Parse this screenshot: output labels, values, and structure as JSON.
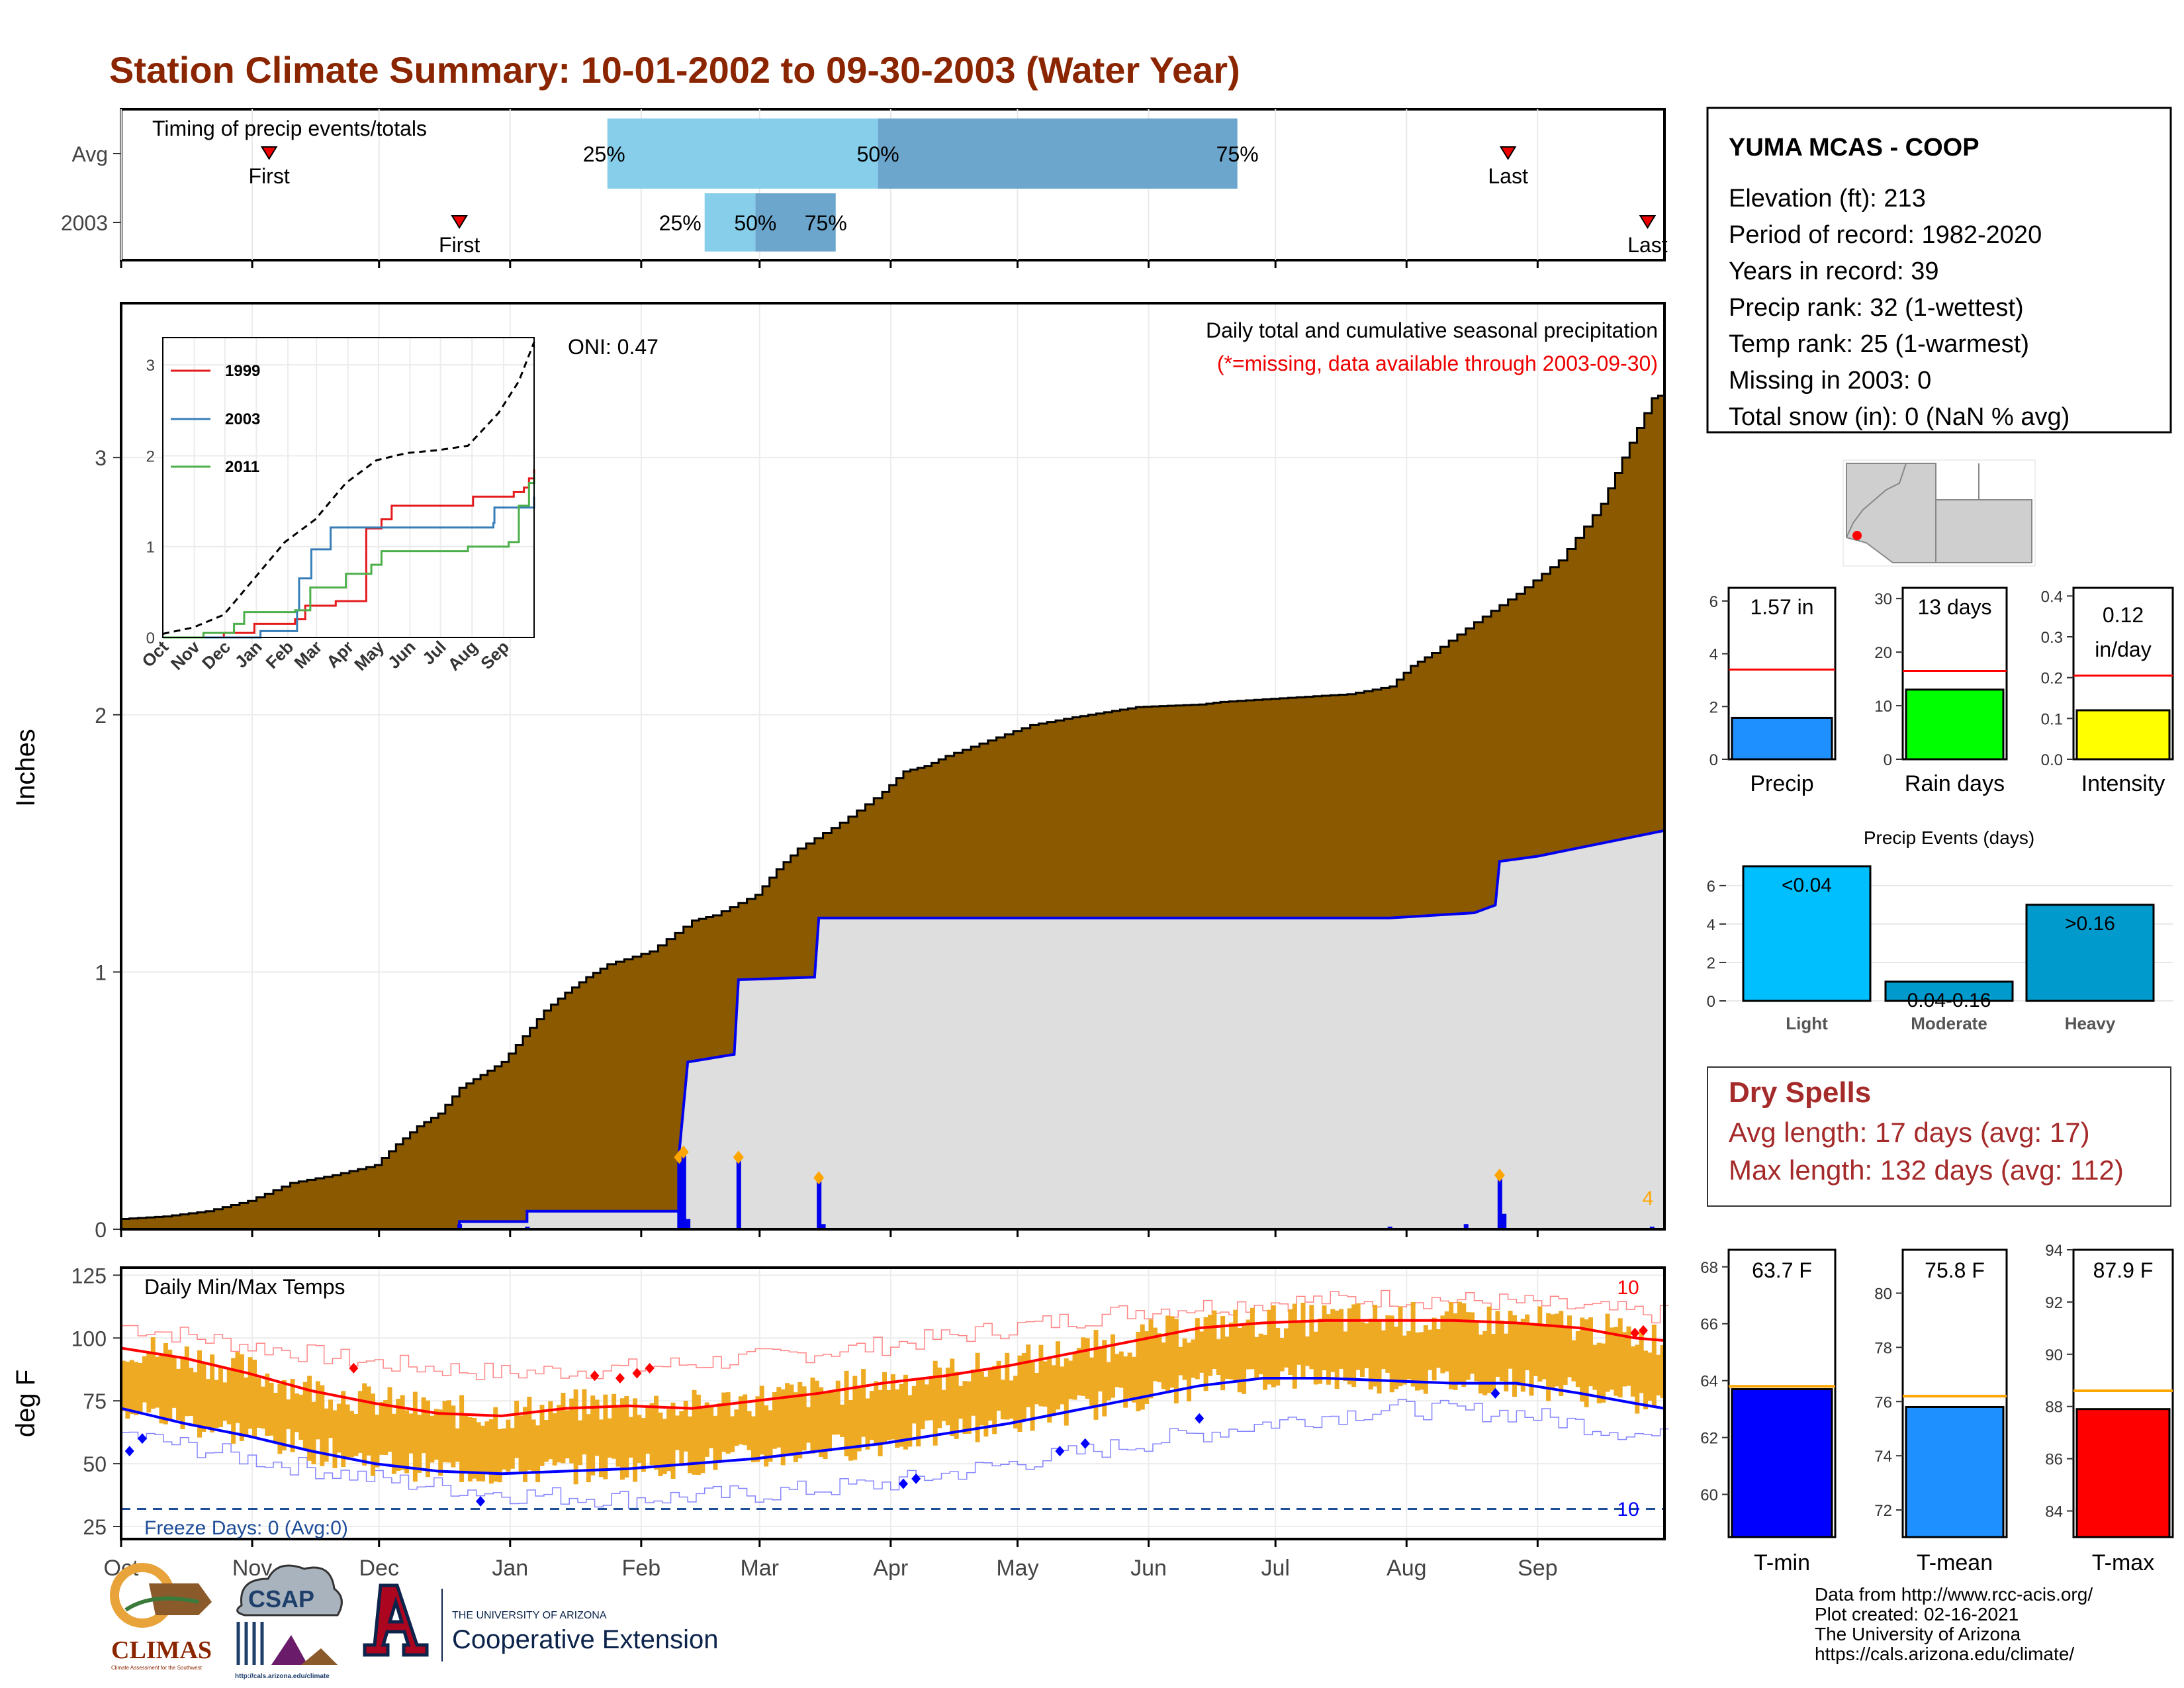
{
  "title": "Station Climate Summary: 10-01-2002 to 09-30-2003 (Water Year)",
  "station": {
    "name": "YUMA MCAS - COOP",
    "lines": [
      "Elevation (ft): 213",
      "Period of record: 1982-2020",
      "Years in record: 39",
      "Precip rank: 32 (1-wettest)",
      "Temp rank: 25 (1-warmest)",
      "Missing in 2003: 0",
      "Total snow (in): 0 (NaN % avg)"
    ]
  },
  "months": [
    "Oct",
    "Nov",
    "Dec",
    "Jan",
    "Feb",
    "Mar",
    "Apr",
    "May",
    "Jun",
    "Jul",
    "Aug",
    "Sep"
  ],
  "colors": {
    "title": "#8B2500",
    "precip_fill": "#8B5A00",
    "obs_line": "#0000EE",
    "obs_fill": "#DEDEDE",
    "tmax": "#FF0000",
    "tmin": "#0000FF",
    "band": "#EEAA22",
    "light_blue": "#87CEEB",
    "mid_blue": "#6CA6CD",
    "dry": "#A52A2A"
  },
  "chart_data": [
    {
      "type": "bar",
      "name": "timing",
      "label": "Timing of precip events/totals",
      "rows": [
        {
          "label": "Avg",
          "first": "First",
          "last": "Last",
          "first_day": 35,
          "last_day": 328,
          "p25": 115,
          "p50": 179,
          "p75": 264
        },
        {
          "label": "2003",
          "first": "First",
          "last": "Last",
          "first_day": 80,
          "last_day": 361,
          "p25": 138,
          "p50": 150,
          "p75": 169
        }
      ],
      "pct_labels": [
        "25%",
        "50%",
        "75%"
      ]
    },
    {
      "type": "area",
      "name": "precipitation",
      "ylabel": "Inches",
      "yticks": [
        0,
        1,
        2,
        3
      ],
      "ylim": [
        0,
        3.6
      ],
      "header": "Daily total and cumulative seasonal precipitation",
      "subheader": "(*=missing, data available through 2003-09-30)",
      "oni": "ONI: 0.47",
      "count_label": "4",
      "avg_cumulative": [
        [
          0,
          0.04
        ],
        [
          10,
          0.05
        ],
        [
          20,
          0.07
        ],
        [
          30,
          0.11
        ],
        [
          40,
          0.18
        ],
        [
          50,
          0.21
        ],
        [
          60,
          0.25
        ],
        [
          65,
          0.33
        ],
        [
          70,
          0.4
        ],
        [
          75,
          0.45
        ],
        [
          80,
          0.55
        ],
        [
          85,
          0.6
        ],
        [
          90,
          0.65
        ],
        [
          95,
          0.75
        ],
        [
          100,
          0.85
        ],
        [
          105,
          0.92
        ],
        [
          110,
          0.98
        ],
        [
          115,
          1.03
        ],
        [
          125,
          1.08
        ],
        [
          135,
          1.2
        ],
        [
          140,
          1.22
        ],
        [
          150,
          1.3
        ],
        [
          155,
          1.4
        ],
        [
          160,
          1.48
        ],
        [
          170,
          1.58
        ],
        [
          180,
          1.7
        ],
        [
          185,
          1.78
        ],
        [
          190,
          1.8
        ],
        [
          195,
          1.84
        ],
        [
          205,
          1.9
        ],
        [
          215,
          1.96
        ],
        [
          225,
          1.99
        ],
        [
          240,
          2.03
        ],
        [
          255,
          2.04
        ],
        [
          260,
          2.05
        ],
        [
          280,
          2.07
        ],
        [
          290,
          2.08
        ],
        [
          300,
          2.11
        ],
        [
          305,
          2.19
        ],
        [
          310,
          2.24
        ],
        [
          320,
          2.36
        ],
        [
          330,
          2.47
        ],
        [
          340,
          2.6
        ],
        [
          350,
          2.82
        ],
        [
          355,
          3.0
        ],
        [
          362,
          3.23
        ],
        [
          365,
          3.25
        ]
      ],
      "obs_cumulative": [
        [
          0,
          0
        ],
        [
          80,
          0
        ],
        [
          80,
          0.03
        ],
        [
          96,
          0.03
        ],
        [
          96,
          0.07
        ],
        [
          132,
          0.07
        ],
        [
          132,
          0.3
        ],
        [
          134,
          0.65
        ],
        [
          145,
          0.68
        ],
        [
          146,
          0.97
        ],
        [
          164,
          0.98
        ],
        [
          165,
          1.21
        ],
        [
          300,
          1.21
        ],
        [
          320,
          1.23
        ],
        [
          325,
          1.26
        ],
        [
          326,
          1.43
        ],
        [
          335,
          1.45
        ],
        [
          365,
          1.55
        ]
      ],
      "daily_bars": [
        [
          80,
          0.02
        ],
        [
          96,
          0.01
        ],
        [
          132,
          0.28
        ],
        [
          133,
          0.3
        ],
        [
          134,
          0.04
        ],
        [
          146,
          0.28
        ],
        [
          165,
          0.2
        ],
        [
          166,
          0.02
        ],
        [
          300,
          0.01
        ],
        [
          318,
          0.02
        ],
        [
          326,
          0.21
        ],
        [
          327,
          0.06
        ],
        [
          362,
          0.01
        ]
      ]
    },
    {
      "type": "line",
      "name": "inset_cumulative",
      "categories": [
        "Oct",
        "Nov",
        "Dec",
        "Jan",
        "Feb",
        "Mar",
        "Apr",
        "May",
        "Jun",
        "Jul",
        "Aug",
        "Sep"
      ],
      "yticks": [
        0,
        1,
        2,
        3
      ],
      "series": [
        {
          "name": "1999",
          "color": "#E41A1C",
          "points": [
            [
              0,
              0
            ],
            [
              60,
              0.05
            ],
            [
              90,
              0.15
            ],
            [
              130,
              0.2
            ],
            [
              140,
              0.35
            ],
            [
              155,
              0.35
            ],
            [
              170,
              0.4
            ],
            [
              195,
              0.4
            ],
            [
              200,
              1.2
            ],
            [
              215,
              1.3
            ],
            [
              225,
              1.45
            ],
            [
              300,
              1.45
            ],
            [
              305,
              1.55
            ],
            [
              340,
              1.55
            ],
            [
              345,
              1.6
            ],
            [
              355,
              1.65
            ],
            [
              360,
              1.75
            ],
            [
              365,
              1.85
            ]
          ]
        },
        {
          "name": "2003",
          "color": "#377EB8",
          "points": [
            [
              0,
              0
            ],
            [
              80,
              0
            ],
            [
              96,
              0.07
            ],
            [
              132,
              0.3
            ],
            [
              134,
              0.65
            ],
            [
              146,
              0.97
            ],
            [
              165,
              1.21
            ],
            [
              300,
              1.21
            ],
            [
              325,
              1.26
            ],
            [
              326,
              1.43
            ],
            [
              365,
              1.55
            ]
          ]
        },
        {
          "name": "2011",
          "color": "#4DAF4A",
          "points": [
            [
              0,
              0
            ],
            [
              40,
              0.05
            ],
            [
              70,
              0.15
            ],
            [
              80,
              0.28
            ],
            [
              130,
              0.3
            ],
            [
              145,
              0.55
            ],
            [
              180,
              0.7
            ],
            [
              205,
              0.8
            ],
            [
              215,
              0.95
            ],
            [
              300,
              1.0
            ],
            [
              340,
              1.05
            ],
            [
              350,
              1.45
            ],
            [
              360,
              1.7
            ],
            [
              365,
              1.8
            ]
          ]
        },
        {
          "name": "Average",
          "color": "#000000",
          "points": [
            [
              0,
              0.04
            ],
            [
              30,
              0.11
            ],
            [
              60,
              0.25
            ],
            [
              90,
              0.65
            ],
            [
              120,
              1.05
            ],
            [
              150,
              1.3
            ],
            [
              180,
              1.7
            ],
            [
              210,
              1.95
            ],
            [
              240,
              2.03
            ],
            [
              270,
              2.06
            ],
            [
              300,
              2.11
            ],
            [
              330,
              2.47
            ],
            [
              350,
              2.82
            ],
            [
              365,
              3.25
            ]
          ]
        }
      ]
    },
    {
      "type": "bar",
      "name": "small_bars",
      "panels": [
        {
          "label": "Precip",
          "value_text": "1.57 in",
          "value": 1.57,
          "avg": 3.4,
          "ylim": [
            0,
            6.5
          ],
          "yticks": [
            0,
            2,
            4,
            6
          ],
          "color": "#1E90FF"
        },
        {
          "label": "Rain days",
          "value_text": "13 days",
          "value": 13,
          "avg": 16.5,
          "ylim": [
            0,
            32
          ],
          "yticks": [
            0,
            10,
            20,
            30
          ],
          "color": "#00FF00"
        },
        {
          "label": "Intensity",
          "value_text": "0.12 in/day",
          "value": 0.12,
          "avg": 0.205,
          "ylim": [
            0,
            0.42
          ],
          "yticks": [
            "0.0",
            "0.1",
            "0.2",
            "0.3",
            "0.4"
          ],
          "color": "#FFFF00"
        }
      ]
    },
    {
      "type": "bar",
      "name": "precip_events",
      "title": "Precip Events (days)",
      "categories": [
        "Light",
        "Moderate",
        "Heavy"
      ],
      "values": [
        7,
        1,
        5
      ],
      "value_labels": [
        "<0.04",
        "0.04-0.16",
        ">0.16"
      ],
      "yticks": [
        0,
        2,
        4,
        6
      ],
      "colors": [
        "#00BFFF",
        "#009ACD",
        "#009ACD"
      ]
    },
    {
      "type": "line",
      "name": "temperature",
      "label": "Daily Min/Max Temps",
      "ylabel": "deg F",
      "yticks": [
        25,
        50,
        75,
        100,
        125
      ],
      "ylim": [
        20,
        128
      ],
      "freeze_text": "Freeze Days: 0 (Avg:0)",
      "freeze_line": 32,
      "top_count": "10",
      "bottom_count": "10",
      "avg_max": [
        [
          0,
          96
        ],
        [
          15,
          92
        ],
        [
          30,
          86
        ],
        [
          45,
          79
        ],
        [
          60,
          74
        ],
        [
          75,
          70
        ],
        [
          90,
          69
        ],
        [
          105,
          72
        ],
        [
          120,
          73
        ],
        [
          135,
          72
        ],
        [
          150,
          75
        ],
        [
          165,
          78
        ],
        [
          180,
          82
        ],
        [
          195,
          85
        ],
        [
          210,
          89
        ],
        [
          225,
          94
        ],
        [
          240,
          99
        ],
        [
          255,
          104
        ],
        [
          270,
          106
        ],
        [
          285,
          107
        ],
        [
          300,
          107
        ],
        [
          315,
          107
        ],
        [
          330,
          106
        ],
        [
          345,
          104
        ],
        [
          358,
          100
        ],
        [
          365,
          99
        ]
      ],
      "avg_min": [
        [
          0,
          72
        ],
        [
          15,
          66
        ],
        [
          30,
          61
        ],
        [
          45,
          55
        ],
        [
          60,
          50
        ],
        [
          75,
          47
        ],
        [
          90,
          46
        ],
        [
          105,
          47
        ],
        [
          120,
          48
        ],
        [
          135,
          50
        ],
        [
          150,
          52
        ],
        [
          165,
          55
        ],
        [
          180,
          58
        ],
        [
          195,
          62
        ],
        [
          210,
          66
        ],
        [
          225,
          71
        ],
        [
          240,
          76
        ],
        [
          255,
          81
        ],
        [
          270,
          84
        ],
        [
          285,
          84
        ],
        [
          300,
          83
        ],
        [
          315,
          82
        ],
        [
          330,
          82
        ],
        [
          345,
          78
        ],
        [
          358,
          74
        ],
        [
          365,
          72
        ]
      ],
      "rec_max": [
        [
          0,
          105
        ],
        [
          30,
          97
        ],
        [
          60,
          90
        ],
        [
          90,
          86
        ],
        [
          120,
          88
        ],
        [
          150,
          92
        ],
        [
          180,
          97
        ],
        [
          210,
          104
        ],
        [
          240,
          111
        ],
        [
          270,
          114
        ],
        [
          300,
          116
        ],
        [
          330,
          114
        ],
        [
          365,
          109
        ]
      ],
      "rec_min": [
        [
          0,
          62
        ],
        [
          30,
          52
        ],
        [
          60,
          44
        ],
        [
          90,
          38
        ],
        [
          120,
          36
        ],
        [
          150,
          38
        ],
        [
          180,
          42
        ],
        [
          210,
          50
        ],
        [
          240,
          58
        ],
        [
          270,
          66
        ],
        [
          300,
          72
        ],
        [
          330,
          70
        ],
        [
          365,
          60
        ]
      ]
    },
    {
      "type": "bar",
      "name": "temp_bars",
      "panels": [
        {
          "label": "T-min",
          "value_text": "63.7 F",
          "value": 63.7,
          "avg": 63.8,
          "ylim": [
            58.5,
            68.6
          ],
          "yticks": [
            60,
            62,
            64,
            66,
            68
          ],
          "color": "#0000FF"
        },
        {
          "label": "T-mean",
          "value_text": "75.8 F",
          "value": 75.8,
          "avg": 76.2,
          "ylim": [
            71,
            81.6
          ],
          "yticks": [
            72,
            74,
            76,
            78,
            80
          ],
          "color": "#1E90FF"
        },
        {
          "label": "T-max",
          "value_text": "87.9 F",
          "value": 87.9,
          "avg": 88.6,
          "ylim": [
            83,
            94
          ],
          "yticks": [
            84,
            86,
            88,
            90,
            92,
            94
          ],
          "color": "#FF0000"
        }
      ]
    }
  ],
  "dry": {
    "title": "Dry Spells",
    "avg": "Avg length: 17 days (avg: 17)",
    "max": "Max length: 132 days (avg: 112)"
  },
  "logos": {
    "climas": "CLIMAS",
    "climas_sub": "Climate Assessment for the Southwest",
    "csap": "CSAP",
    "csap_url": "http://cals.arizona.edu/climate",
    "ua_small": "THE UNIVERSITY OF ARIZONA",
    "ua_big": "Cooperative Extension"
  },
  "footer": [
    "Data from http://www.rcc-acis.org/",
    "Plot created: 02-16-2021",
    "The University of Arizona",
    "https://cals.arizona.edu/climate/"
  ]
}
